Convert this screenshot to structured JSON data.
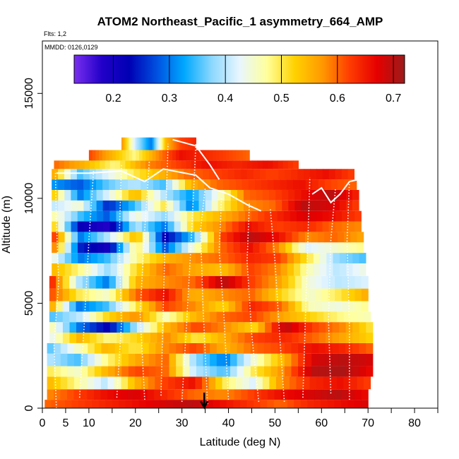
{
  "chart_data": {
    "type": "heatmap",
    "title": "ATOM2 Northeast_Pacific_1 asymmetry_664_AMP",
    "flights_label": "Flts: 1,2",
    "date_label": "MMDD: 0126,0129",
    "xlabel": "Latitude (deg N)",
    "ylabel": "Altitude (m)",
    "xlim": [
      0,
      85
    ],
    "ylim": [
      0,
      17500
    ],
    "x_ticks": [
      0,
      5,
      10,
      20,
      30,
      40,
      50,
      60,
      70,
      80
    ],
    "y_ticks": [
      0,
      5000,
      10000,
      15000
    ],
    "colorbar": {
      "range": [
        0.13,
        0.72
      ],
      "ticks": [
        0.2,
        0.3,
        0.4,
        0.5,
        0.6,
        0.7
      ],
      "tick_labels": [
        "0.2",
        "0.3",
        "0.4",
        "0.5",
        "0.6",
        "0.7"
      ],
      "colors": [
        "#7a2ff0",
        "#2200c8",
        "#0000b4",
        "#0050e0",
        "#00a8ff",
        "#8cd8ff",
        "#e8f6ff",
        "#ffff9c",
        "#ffd200",
        "#ff9a00",
        "#ff3c00",
        "#e60000",
        "#9b1b1b"
      ]
    },
    "sample_latitude_marker": 34.8,
    "layers": [
      {
        "z0": 0,
        "z1": 400,
        "x0": 0.5,
        "x1": 70,
        "values": [
          0.6,
          0.62,
          0.64,
          0.66,
          0.68,
          0.7,
          0.66,
          0.63,
          0.6,
          0.64,
          0.66,
          0.68
        ]
      },
      {
        "z0": 400,
        "z1": 900,
        "x0": 1.0,
        "x1": 70,
        "values": [
          0.58,
          0.62,
          0.66,
          0.68,
          0.64,
          0.6,
          0.58,
          0.62,
          0.66,
          0.68,
          0.7,
          0.66
        ]
      },
      {
        "z0": 900,
        "z1": 1500,
        "x0": 1.0,
        "x1": 70.5,
        "values": [
          0.55,
          0.48,
          0.4,
          0.55,
          0.62,
          0.66,
          0.5,
          0.42,
          0.58,
          0.64,
          0.66,
          0.62
        ]
      },
      {
        "z0": 1500,
        "z1": 2000,
        "x0": 1.0,
        "x1": 71,
        "values": [
          0.5,
          0.45,
          0.55,
          0.62,
          0.6,
          0.4,
          0.35,
          0.5,
          0.58,
          0.7,
          0.71,
          0.66
        ]
      },
      {
        "z0": 2000,
        "z1": 2600,
        "x0": 1.0,
        "x1": 71,
        "values": [
          0.4,
          0.35,
          0.48,
          0.56,
          0.6,
          0.38,
          0.3,
          0.45,
          0.55,
          0.68,
          0.7,
          0.68
        ]
      },
      {
        "z0": 2600,
        "z1": 3100,
        "x0": 1.0,
        "x1": 71,
        "values": [
          0.35,
          0.45,
          0.55,
          0.5,
          0.58,
          0.62,
          0.55,
          0.6,
          0.62,
          0.66,
          0.64,
          0.6
        ]
      },
      {
        "z0": 3100,
        "z1": 3600,
        "x0": 1.5,
        "x1": 71,
        "values": [
          0.42,
          0.55,
          0.48,
          0.52,
          0.58,
          0.5,
          0.56,
          0.62,
          0.64,
          0.6,
          0.56,
          0.52
        ]
      },
      {
        "z0": 3600,
        "z1": 4100,
        "x0": 1.5,
        "x1": 71,
        "values": [
          0.48,
          0.3,
          0.22,
          0.4,
          0.55,
          0.62,
          0.58,
          0.52,
          0.7,
          0.62,
          0.58,
          0.5
        ]
      },
      {
        "z0": 4100,
        "z1": 4600,
        "x0": 1.5,
        "x1": 70.5,
        "values": [
          0.35,
          0.4,
          0.52,
          0.58,
          0.46,
          0.55,
          0.6,
          0.62,
          0.56,
          0.52,
          0.48,
          0.46
        ]
      },
      {
        "z0": 4600,
        "z1": 5100,
        "x0": 1.5,
        "x1": 70,
        "values": [
          0.58,
          0.3,
          0.35,
          0.5,
          0.62,
          0.58,
          0.52,
          0.64,
          0.6,
          0.46,
          0.44,
          0.48
        ]
      },
      {
        "z0": 5100,
        "z1": 5700,
        "x0": 1.5,
        "x1": 70,
        "values": [
          0.62,
          0.5,
          0.45,
          0.6,
          0.66,
          0.55,
          0.58,
          0.6,
          0.52,
          0.45,
          0.5,
          0.56
        ]
      },
      {
        "z0": 5700,
        "z1": 6300,
        "x0": 1.5,
        "x1": 70,
        "values": [
          0.66,
          0.4,
          0.3,
          0.55,
          0.58,
          0.6,
          0.7,
          0.62,
          0.56,
          0.44,
          0.4,
          0.42
        ]
      },
      {
        "z0": 6300,
        "z1": 6900,
        "x0": 2.0,
        "x1": 69.5,
        "values": [
          0.55,
          0.48,
          0.38,
          0.52,
          0.6,
          0.56,
          0.54,
          0.62,
          0.58,
          0.46,
          0.4,
          0.44
        ]
      },
      {
        "z0": 6900,
        "z1": 7400,
        "x0": 2.0,
        "x1": 69.5,
        "values": [
          0.45,
          0.3,
          0.35,
          0.48,
          0.55,
          0.58,
          0.6,
          0.64,
          0.62,
          0.5,
          0.38,
          0.35
        ]
      },
      {
        "z0": 7400,
        "z1": 7900,
        "x0": 2.0,
        "x1": 69,
        "values": [
          0.62,
          0.25,
          0.2,
          0.5,
          0.28,
          0.45,
          0.6,
          0.66,
          0.58,
          0.42,
          0.45,
          0.48
        ]
      },
      {
        "z0": 7900,
        "z1": 8400,
        "x0": 2.0,
        "x1": 69,
        "values": [
          0.66,
          0.3,
          0.4,
          0.55,
          0.22,
          0.35,
          0.62,
          0.7,
          0.66,
          0.58,
          0.6,
          0.56
        ]
      },
      {
        "z0": 8400,
        "z1": 8900,
        "x0": 2.0,
        "x1": 68.5,
        "values": [
          0.55,
          0.22,
          0.18,
          0.4,
          0.3,
          0.52,
          0.58,
          0.66,
          0.62,
          0.64,
          0.6,
          0.58
        ]
      },
      {
        "z0": 8900,
        "z1": 9400,
        "x0": 2.0,
        "x1": 68.5,
        "values": [
          0.48,
          0.35,
          0.28,
          0.45,
          0.38,
          0.5,
          0.55,
          0.6,
          0.64,
          0.68,
          0.66,
          0.62
        ]
      },
      {
        "z0": 9400,
        "z1": 9900,
        "x0": 2.0,
        "x1": 68,
        "values": [
          0.4,
          0.45,
          0.25,
          0.35,
          0.5,
          0.3,
          0.48,
          0.58,
          0.6,
          0.7,
          0.68,
          0.62
        ]
      },
      {
        "z0": 9900,
        "z1": 10400,
        "x0": 2.0,
        "x1": 68,
        "values": [
          0.55,
          0.3,
          0.42,
          0.55,
          0.4,
          0.32,
          0.45,
          0.6,
          0.62,
          0.66,
          0.7,
          0.64
        ]
      },
      {
        "z0": 10400,
        "z1": 10900,
        "x0": 2.0,
        "x1": 67.5,
        "values": [
          0.32,
          0.28,
          0.36,
          0.4,
          0.35,
          0.55,
          0.6,
          0.62,
          0.64,
          0.66,
          0.62,
          0.6
        ]
      },
      {
        "z0": 10900,
        "z1": 11400,
        "x0": 2.0,
        "x1": 67,
        "values": [
          0.58,
          0.35,
          0.42,
          0.5,
          0.55,
          0.6,
          0.62,
          0.64,
          0.62,
          0.64,
          0.66,
          0.62
        ]
      },
      {
        "z0": 11400,
        "z1": 11800,
        "x0": 2.5,
        "x1": 55,
        "values": [
          0.6,
          0.55,
          0.48,
          0.58,
          0.62,
          0.66,
          0.64,
          0.66,
          0.62
        ]
      },
      {
        "z0": 11800,
        "z1": 12300,
        "x0": 10,
        "x1": 44.5,
        "values": [
          0.62,
          0.55,
          0.48,
          0.58,
          0.66,
          0.64,
          0.62,
          0.6
        ]
      },
      {
        "z0": 12300,
        "z1": 12900,
        "x0": 17,
        "x1": 33,
        "values": [
          0.58,
          0.4,
          0.3,
          0.55,
          0.62,
          0.64
        ]
      }
    ]
  }
}
